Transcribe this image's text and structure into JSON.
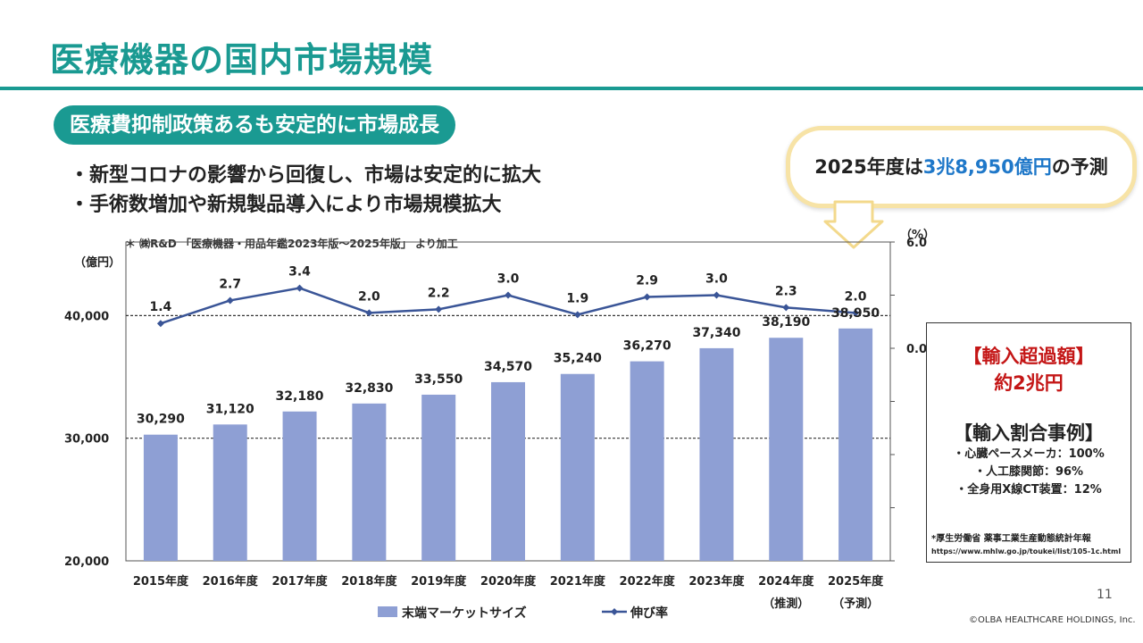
{
  "page": {
    "title": "医療機器の国内市場規模",
    "subtitle": "医療費抑制政策あるも安定的に市場成長",
    "bullets": [
      "・新型コロナの影響から回復し、市場は安定的に拡大",
      "・手術数増加や新規製品導入により市場規模拡大"
    ],
    "source": "＊ ㈱R&D 「医療機器・用品年鑑2023年版～2025年版」 より加工",
    "callout": {
      "prefix": "2025年度は",
      "highlight": "3兆8,950億円",
      "suffix": "の予測"
    },
    "side_box": {
      "import_label": "【輸入超過額】",
      "import_value": "約2兆円",
      "examples_title": "【輸入割合事例】",
      "examples": [
        "・心臓ペースメーカ：100%",
        "・人工膝関節：96%",
        "・全身用X線CT装置：12%"
      ],
      "note": "*厚生労働省 薬事工業生産動態統計年報",
      "url": "https://www.mhlw.go.jp/toukei/list/105-1c.html"
    },
    "page_number": "11",
    "copyright": "©OLBA HEALTHCARE HOLDINGS, Inc.",
    "colors": {
      "accent": "#1a9a92",
      "bar": "#8e9fd4",
      "line": "#3a5597",
      "callout_highlight": "#1f78c9",
      "import_red": "#c41616"
    }
  },
  "chart_data": {
    "type": "bar",
    "categories": [
      "2015年度",
      "2016年度",
      "2017年度",
      "2018年度",
      "2019年度",
      "2020年度",
      "2021年度",
      "2022年度",
      "2023年度",
      "2024年度",
      "2025年度"
    ],
    "category_notes": [
      "",
      "",
      "",
      "",
      "",
      "",
      "",
      "",
      "",
      "（推測）",
      "（予測）"
    ],
    "series": [
      {
        "name": "末端マーケットサイズ",
        "type": "bar",
        "axis": "left",
        "values": [
          30290,
          31120,
          32180,
          32830,
          33550,
          34570,
          35240,
          36270,
          37340,
          38190,
          38950
        ],
        "labels": [
          "30,290",
          "31,120",
          "32,180",
          "32,830",
          "33,550",
          "34,570",
          "35,240",
          "36,270",
          "37,340",
          "38,190",
          "38,950"
        ]
      },
      {
        "name": "伸び率",
        "type": "line",
        "axis": "right",
        "values": [
          1.4,
          2.7,
          3.4,
          2.0,
          2.2,
          3.0,
          1.9,
          2.9,
          3.0,
          2.3,
          2.0
        ],
        "labels": [
          "1.4",
          "2.7",
          "3.4",
          "2.0",
          "2.2",
          "3.0",
          "1.9",
          "2.9",
          "3.0",
          "2.3",
          "2.0"
        ]
      }
    ],
    "left_axis": {
      "unit": "（億円）",
      "range": [
        20000,
        46000
      ],
      "ticks": [
        20000,
        30000,
        40000
      ],
      "tick_labels": [
        "20,000",
        "30,000",
        "40,000"
      ]
    },
    "right_axis": {
      "unit": "（%）",
      "range": [
        -12.0,
        6.0
      ],
      "ticks": [
        0.0,
        6.0
      ],
      "tick_labels": [
        "0.0",
        "6.0"
      ]
    },
    "legend": "bottom"
  }
}
